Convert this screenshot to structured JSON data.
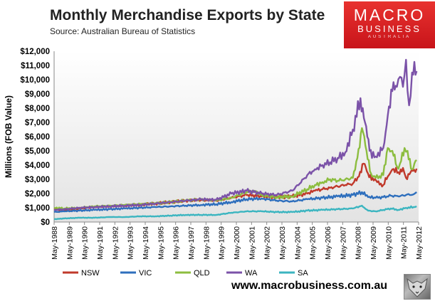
{
  "header": {
    "title": "Monthly Merchandise Exports by State",
    "subtitle": "Source:  Australian Bureau of Statistics"
  },
  "logo": {
    "line1": "MACRO",
    "line2": "BUSINESS",
    "line3": "AUSTRALIA"
  },
  "footer": {
    "url": "www.macrobusiness.com.au"
  },
  "icons": {
    "logo_mascot": "wolf-icon"
  },
  "chart_data": {
    "type": "line",
    "title": "Monthly Merchandise Exports by State",
    "ylabel": "Millions (FOB Value)",
    "xlabel": "",
    "ylim": [
      0,
      12000
    ],
    "yticks": [
      "$0",
      "$1,000",
      "$2,000",
      "$3,000",
      "$4,000",
      "$5,000",
      "$6,000",
      "$7,000",
      "$8,000",
      "$9,000",
      "$10,000",
      "$11,000",
      "$12,000"
    ],
    "ytick_values": [
      0,
      1000,
      2000,
      3000,
      4000,
      5000,
      6000,
      7000,
      8000,
      9000,
      10000,
      11000,
      12000
    ],
    "categories": [
      "May-1988",
      "May-1989",
      "May-1990",
      "May-1991",
      "May-1992",
      "May-1993",
      "May-1994",
      "May-1995",
      "May-1996",
      "May-1997",
      "May-1998",
      "May-1999",
      "May-2000",
      "May-2001",
      "May-2002",
      "May-2003",
      "May-2004",
      "May-2005",
      "May-2006",
      "May-2007",
      "May-2008",
      "May-2009",
      "May-2010",
      "May-2011",
      "May-2012"
    ],
    "grid": false,
    "legend_position": "bottom",
    "series": [
      {
        "name": "NSW",
        "color": "#c0392b",
        "points": [
          [
            1988.33,
            900
          ],
          [
            1989,
            850
          ],
          [
            1990,
            950
          ],
          [
            1991,
            1050
          ],
          [
            1992,
            1100
          ],
          [
            1993,
            1150
          ],
          [
            1994,
            1200
          ],
          [
            1995,
            1300
          ],
          [
            1996,
            1400
          ],
          [
            1997,
            1500
          ],
          [
            1998,
            1550
          ],
          [
            1999,
            1500
          ],
          [
            2000,
            1700
          ],
          [
            2001,
            1900
          ],
          [
            2002,
            1800
          ],
          [
            2003,
            1750
          ],
          [
            2004,
            1800
          ],
          [
            2005,
            2000
          ],
          [
            2005.5,
            2200
          ],
          [
            2006,
            2300
          ],
          [
            2006.5,
            2400
          ],
          [
            2007,
            2500
          ],
          [
            2007.5,
            2600
          ],
          [
            2008,
            2700
          ],
          [
            2008.4,
            3200
          ],
          [
            2008.7,
            4100
          ],
          [
            2009,
            3400
          ],
          [
            2009.3,
            3100
          ],
          [
            2009.6,
            2800
          ],
          [
            2010,
            2600
          ],
          [
            2010.3,
            3200
          ],
          [
            2010.6,
            3700
          ],
          [
            2011,
            3500
          ],
          [
            2011.3,
            3800
          ],
          [
            2011.5,
            3100
          ],
          [
            2011.8,
            3500
          ],
          [
            2012.2,
            3750
          ]
        ]
      },
      {
        "name": "VIC",
        "color": "#2e6fbd",
        "points": [
          [
            1988.33,
            700
          ],
          [
            1989,
            750
          ],
          [
            1990,
            800
          ],
          [
            1991,
            850
          ],
          [
            1992,
            900
          ],
          [
            1993,
            950
          ],
          [
            1994,
            1000
          ],
          [
            1995,
            1050
          ],
          [
            1996,
            1100
          ],
          [
            1997,
            1150
          ],
          [
            1998,
            1200
          ],
          [
            1999,
            1250
          ],
          [
            2000,
            1400
          ],
          [
            2001,
            1600
          ],
          [
            2002,
            1650
          ],
          [
            2003,
            1500
          ],
          [
            2004,
            1450
          ],
          [
            2005,
            1600
          ],
          [
            2006,
            1700
          ],
          [
            2007,
            1800
          ],
          [
            2008,
            1900
          ],
          [
            2008.6,
            2100
          ],
          [
            2009,
            1750
          ],
          [
            2009.5,
            1700
          ],
          [
            2010,
            1750
          ],
          [
            2010.5,
            1850
          ],
          [
            2011,
            1800
          ],
          [
            2011.5,
            1900
          ],
          [
            2012,
            1950
          ],
          [
            2012.2,
            2100
          ]
        ]
      },
      {
        "name": "QLD",
        "color": "#8cbd3f",
        "points": [
          [
            1988.33,
            1000
          ],
          [
            1989,
            950
          ],
          [
            1990,
            1000
          ],
          [
            1991,
            1100
          ],
          [
            1992,
            1150
          ],
          [
            1993,
            1200
          ],
          [
            1994,
            1250
          ],
          [
            1995,
            1300
          ],
          [
            1996,
            1400
          ],
          [
            1997,
            1500
          ],
          [
            1998,
            1600
          ],
          [
            1999,
            1500
          ],
          [
            2000,
            1700
          ],
          [
            2001,
            2100
          ],
          [
            2001.5,
            2200
          ],
          [
            2002,
            1900
          ],
          [
            2003,
            1750
          ],
          [
            2004,
            1800
          ],
          [
            2005,
            2300
          ],
          [
            2005.5,
            2600
          ],
          [
            2006,
            2800
          ],
          [
            2006.5,
            3000
          ],
          [
            2007,
            2900
          ],
          [
            2007.5,
            3000
          ],
          [
            2008,
            3100
          ],
          [
            2008.3,
            4500
          ],
          [
            2008.6,
            6600
          ],
          [
            2008.9,
            5000
          ],
          [
            2009.2,
            3400
          ],
          [
            2009.5,
            3100
          ],
          [
            2010,
            3300
          ],
          [
            2010.3,
            5200
          ],
          [
            2010.6,
            5000
          ],
          [
            2010.9,
            3900
          ],
          [
            2011.1,
            4100
          ],
          [
            2011.4,
            5200
          ],
          [
            2011.6,
            5000
          ],
          [
            2011.9,
            3700
          ],
          [
            2012.2,
            4350
          ]
        ]
      },
      {
        "name": "WA",
        "color": "#7b52a8",
        "points": [
          [
            1988.33,
            850
          ],
          [
            1989,
            900
          ],
          [
            1990,
            1000
          ],
          [
            1991,
            1050
          ],
          [
            1992,
            1100
          ],
          [
            1993,
            1150
          ],
          [
            1994,
            1200
          ],
          [
            1995,
            1300
          ],
          [
            1996,
            1400
          ],
          [
            1997,
            1500
          ],
          [
            1998,
            1600
          ],
          [
            1999,
            1550
          ],
          [
            2000,
            2000
          ],
          [
            2001,
            2200
          ],
          [
            2001.5,
            2100
          ],
          [
            2002,
            2000
          ],
          [
            2003,
            1900
          ],
          [
            2004,
            2200
          ],
          [
            2004.5,
            2700
          ],
          [
            2005,
            3300
          ],
          [
            2005.5,
            3700
          ],
          [
            2006,
            4000
          ],
          [
            2006.5,
            4200
          ],
          [
            2007,
            4500
          ],
          [
            2007.5,
            4900
          ],
          [
            2008,
            6500
          ],
          [
            2008.5,
            8700
          ],
          [
            2008.8,
            7000
          ],
          [
            2009.1,
            5000
          ],
          [
            2009.5,
            4600
          ],
          [
            2010,
            5200
          ],
          [
            2010.3,
            7500
          ],
          [
            2010.6,
            9200
          ],
          [
            2010.9,
            9500
          ],
          [
            2011.1,
            10200
          ],
          [
            2011.3,
            9500
          ],
          [
            2011.5,
            11400
          ],
          [
            2011.7,
            8200
          ],
          [
            2011.9,
            10500
          ],
          [
            2012.2,
            10600
          ]
        ]
      },
      {
        "name": "SA",
        "color": "#3bb5c0",
        "points": [
          [
            1988.33,
            200
          ],
          [
            1989,
            250
          ],
          [
            1990,
            300
          ],
          [
            1991,
            300
          ],
          [
            1992,
            350
          ],
          [
            1993,
            350
          ],
          [
            1994,
            400
          ],
          [
            1995,
            400
          ],
          [
            1996,
            450
          ],
          [
            1997,
            500
          ],
          [
            1998,
            500
          ],
          [
            1999,
            500
          ],
          [
            2000,
            650
          ],
          [
            2001,
            750
          ],
          [
            2002,
            750
          ],
          [
            2003,
            700
          ],
          [
            2004,
            700
          ],
          [
            2005,
            800
          ],
          [
            2006,
            850
          ],
          [
            2007,
            900
          ],
          [
            2008,
            950
          ],
          [
            2008.6,
            1150
          ],
          [
            2009,
            800
          ],
          [
            2009.5,
            750
          ],
          [
            2010,
            850
          ],
          [
            2010.5,
            950
          ],
          [
            2011,
            850
          ],
          [
            2011.5,
            1000
          ],
          [
            2012,
            1050
          ],
          [
            2012.2,
            1100
          ]
        ]
      }
    ]
  }
}
